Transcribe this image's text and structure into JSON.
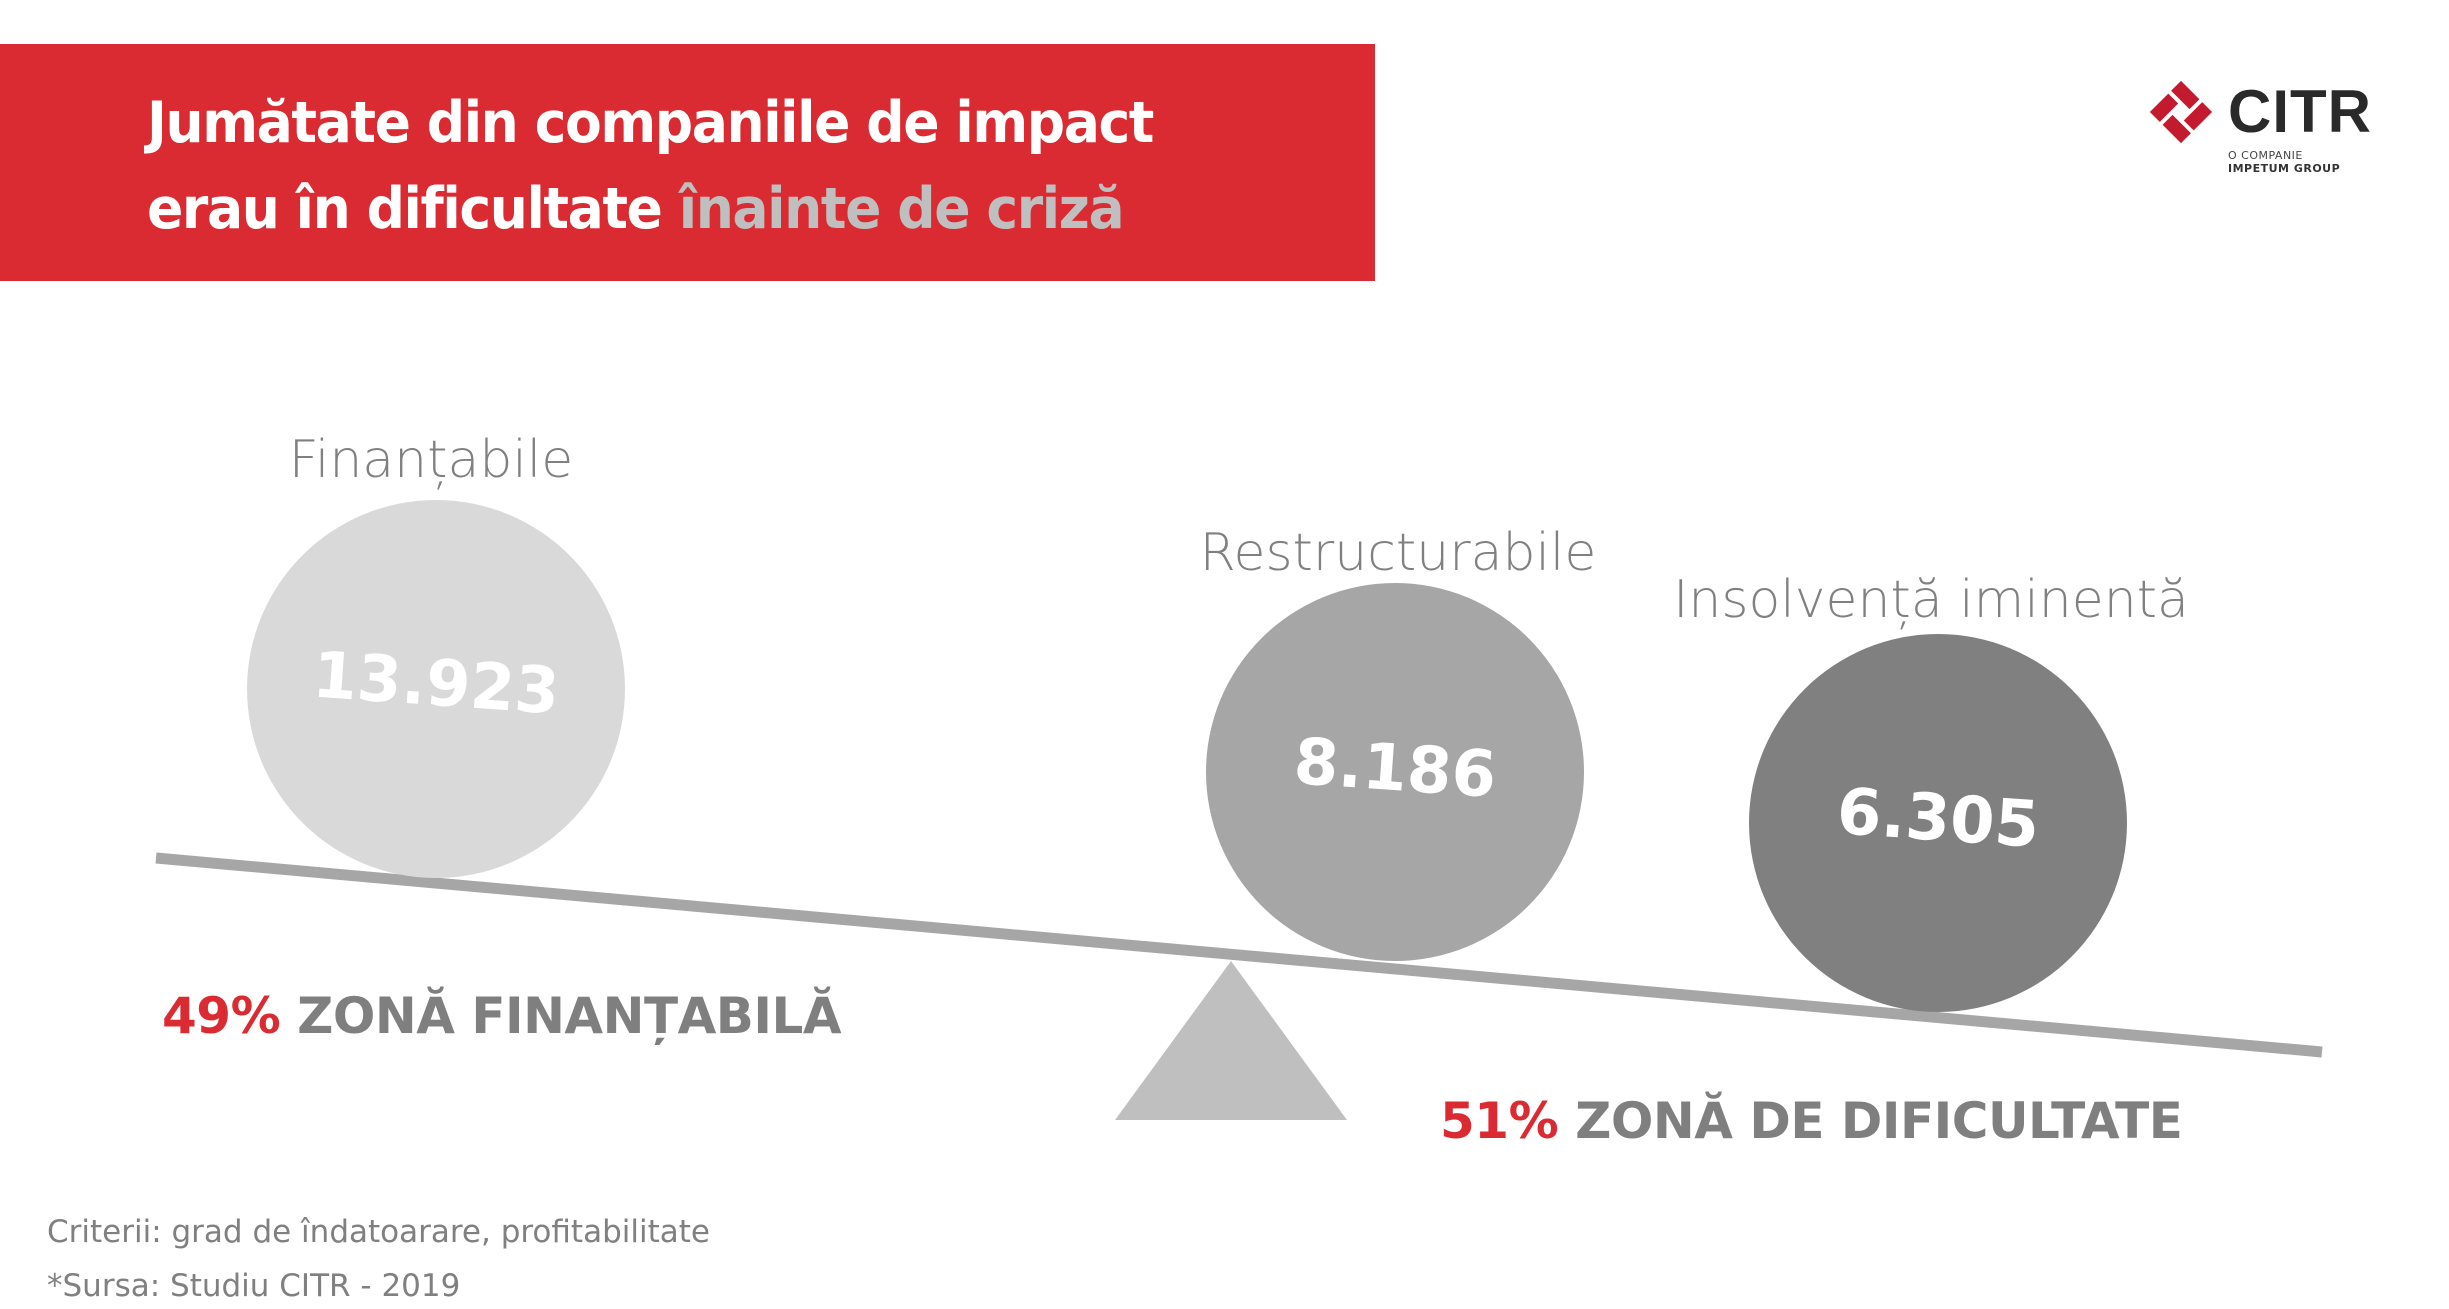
{
  "header": {
    "title_line1": "Jumătate din companiile de impact",
    "title_line2_main": "erau în dificultate",
    "title_line2_highlight": "înainte de criză"
  },
  "logo": {
    "name": "CITR",
    "subtitle_line1": "O COMPANIE",
    "subtitle_line2": "IMPETUM GROUP",
    "icon": "diamond-logo-icon"
  },
  "categories": [
    {
      "label": "Finanțabile",
      "value": "13.923",
      "color": "#d9d9d9"
    },
    {
      "label": "Restructurabile",
      "value": "8.186",
      "color": "#a6a6a6"
    },
    {
      "label": "Insolvență iminentă",
      "value": "6.305",
      "color": "#808080"
    }
  ],
  "zones": {
    "left": {
      "percent": "49%",
      "label": "ZONĂ FINANȚABILĂ"
    },
    "right": {
      "percent": "51%",
      "label": "ZONĂ DE DIFICULTATE"
    }
  },
  "footer": {
    "criteria": "Criterii: grad de îndatoarare, profitabilitate",
    "source": "*Sursa: Studiu CITR - 2019"
  },
  "colors": {
    "brand_red": "#d92b31",
    "beam": "#a6a6a6",
    "fulcrum": "#bfbfbf",
    "text_gray": "#808080"
  }
}
